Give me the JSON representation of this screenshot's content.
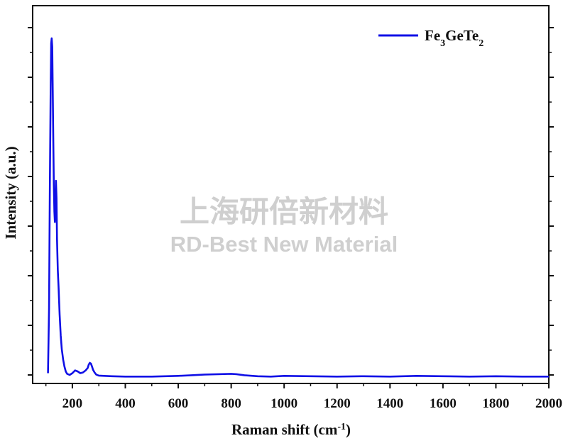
{
  "chart_data": {
    "type": "line",
    "xlabel": "Raman shift (cm",
    "xlabel_sup": "-1",
    "xlabel_end": ")",
    "ylabel": "Intensity (a.u.)",
    "xlim": [
      50,
      2000
    ],
    "ylim": [
      -0.02,
      1.08
    ],
    "x_ticks": [
      200,
      400,
      600,
      800,
      1000,
      1200,
      1400,
      1600,
      1800,
      2000
    ],
    "y_ticks_labeled": false,
    "grid": false,
    "legend": {
      "position": "top-right",
      "label": "Fe",
      "sub1": "3",
      "mid": "GeTe",
      "sub2": "2"
    },
    "series": [
      {
        "name": "Fe3GeTe2",
        "color": "#1010e6",
        "x": [
          108,
          112,
          115,
          118,
          120,
          122,
          124,
          126,
          128,
          130,
          132,
          134,
          136,
          138,
          140,
          142,
          145,
          148,
          152,
          156,
          160,
          165,
          170,
          175,
          180,
          190,
          200,
          210,
          220,
          230,
          240,
          250,
          258,
          262,
          266,
          270,
          274,
          278,
          284,
          290,
          300,
          320,
          350,
          400,
          450,
          500,
          550,
          600,
          650,
          700,
          750,
          800,
          820,
          850,
          900,
          950,
          1000,
          1100,
          1200,
          1300,
          1400,
          1500,
          1600,
          1700,
          1800,
          1900,
          2000
        ],
        "y": [
          0.01,
          0.2,
          0.55,
          0.85,
          0.97,
          0.985,
          0.96,
          0.83,
          0.68,
          0.56,
          0.48,
          0.45,
          0.5,
          0.57,
          0.52,
          0.4,
          0.31,
          0.26,
          0.18,
          0.12,
          0.08,
          0.05,
          0.03,
          0.015,
          0.008,
          0.005,
          0.01,
          0.018,
          0.015,
          0.01,
          0.012,
          0.018,
          0.025,
          0.035,
          0.04,
          0.038,
          0.03,
          0.02,
          0.012,
          0.006,
          0.003,
          0.002,
          0.001,
          0.0,
          0.0,
          0.0,
          0.001,
          0.002,
          0.004,
          0.006,
          0.007,
          0.008,
          0.007,
          0.004,
          0.001,
          0.0,
          0.002,
          0.001,
          0.0,
          0.001,
          0.0,
          0.002,
          0.001,
          0.0,
          0.001,
          0.0,
          0.0
        ]
      }
    ]
  },
  "watermark": {
    "line1": "上海研倍新材料",
    "line2": "RD-Best New Material"
  }
}
